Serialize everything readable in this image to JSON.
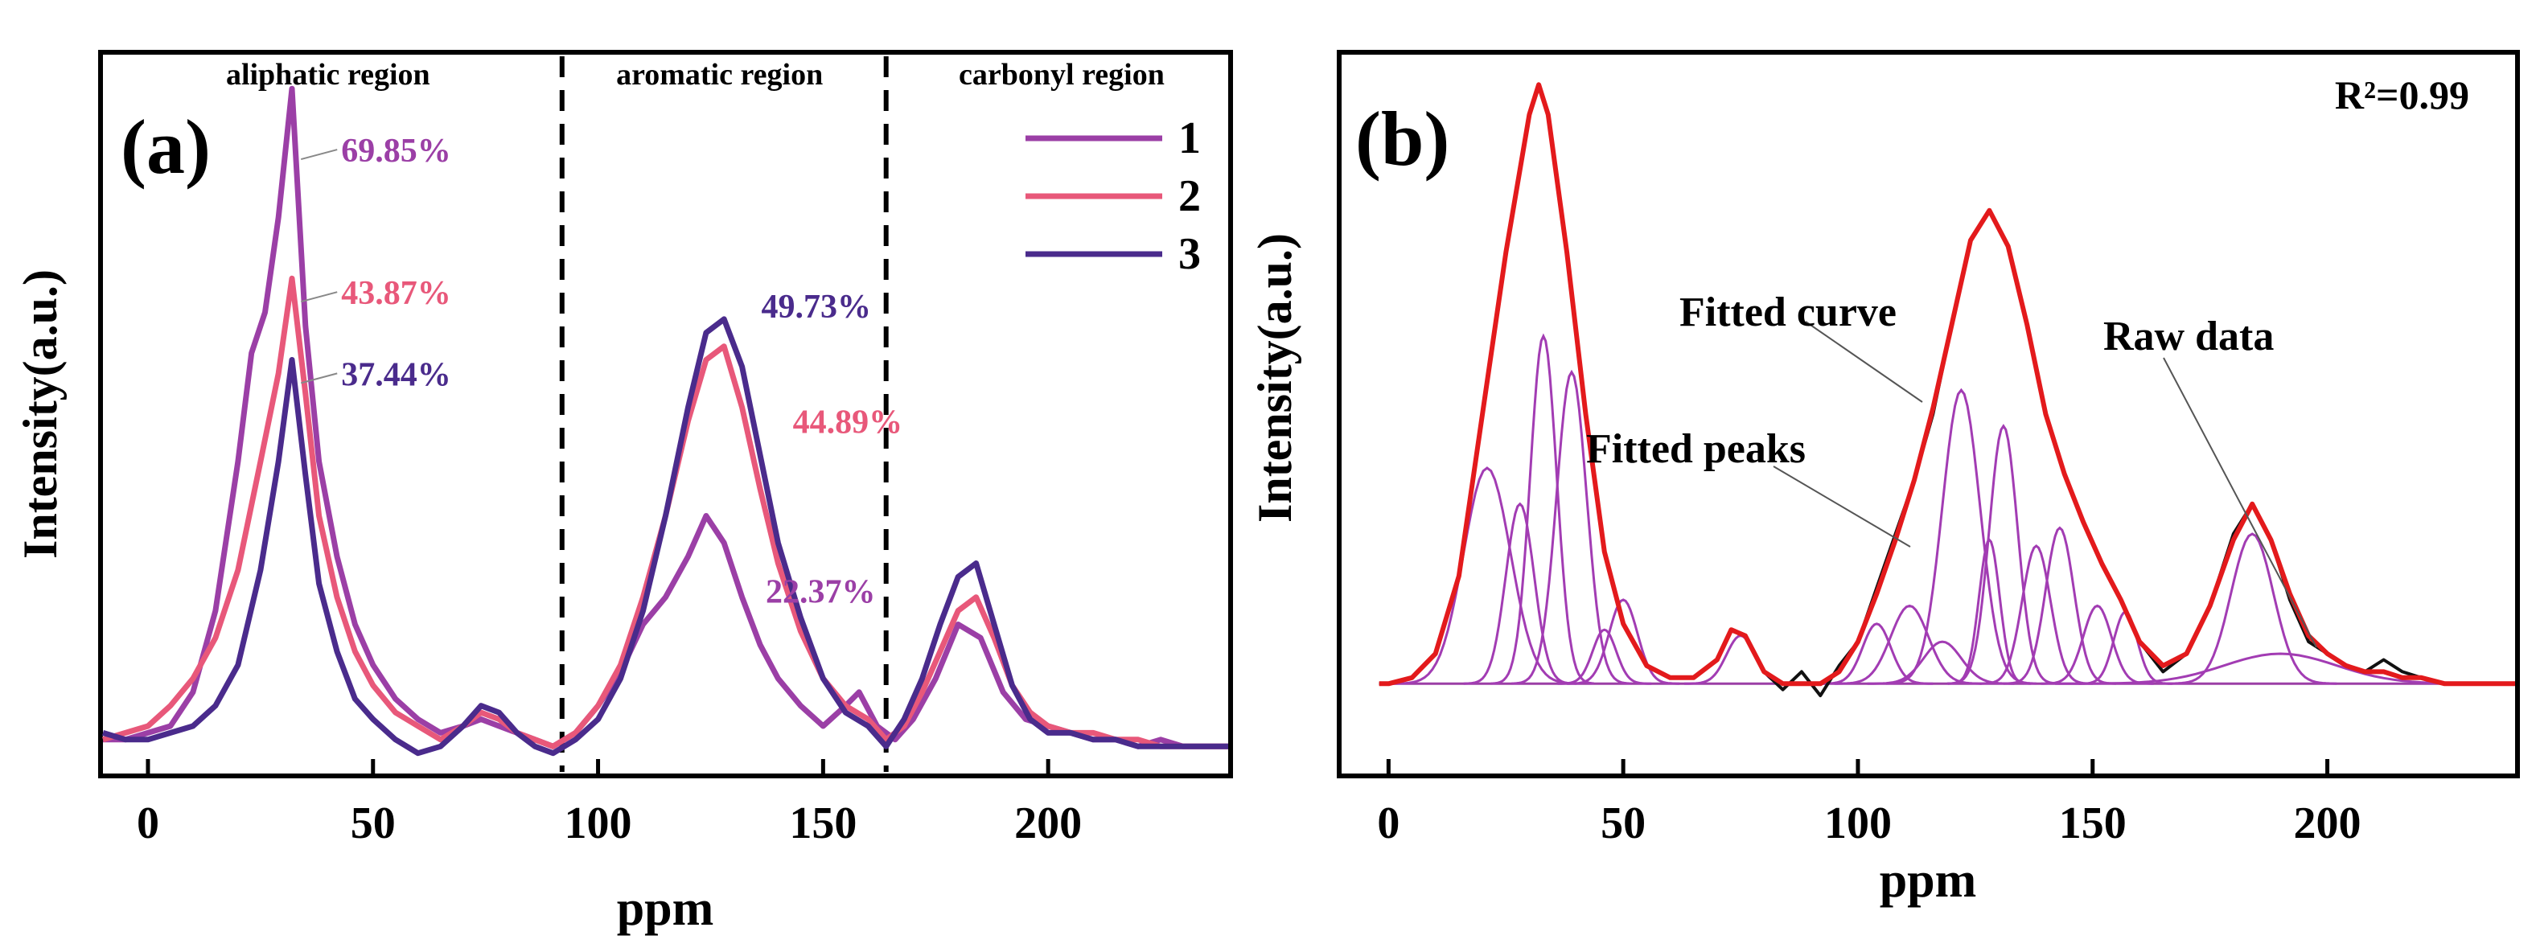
{
  "chart_data": [
    {
      "type": "line",
      "panel_label": "(a)",
      "title": "",
      "xlabel": "ppm",
      "ylabel": "Intensity(a.u.)",
      "xlim": [
        -10,
        240
      ],
      "ylim": [
        -0.04,
        1.02
      ],
      "x_ticks": [
        0,
        50,
        100,
        150,
        200
      ],
      "x_tick_labels": [
        "0",
        "50",
        "100",
        "150",
        "200"
      ],
      "region_dividers": [
        92,
        164
      ],
      "regions": [
        {
          "label": "aliphatic region",
          "center": 40
        },
        {
          "label": "aromatic region",
          "center": 127
        },
        {
          "label": "carbonyl region",
          "center": 203
        }
      ],
      "legend": {
        "position": "top-right",
        "entries": [
          "1",
          "2",
          "3"
        ]
      },
      "series": [
        {
          "name": "1",
          "color": "#9b3fa6",
          "x": [
            -10,
            -5,
            0,
            5,
            10,
            15,
            20,
            23,
            26,
            29,
            32,
            35,
            38,
            42,
            46,
            50,
            55,
            60,
            65,
            70,
            74,
            78,
            82,
            86,
            90,
            95,
            100,
            105,
            110,
            115,
            120,
            124,
            128,
            132,
            136,
            140,
            145,
            150,
            155,
            158,
            162,
            166,
            170,
            175,
            180,
            185,
            190,
            195,
            200,
            205,
            210,
            215,
            220,
            225,
            230,
            235,
            240
          ],
          "y": [
            0.01,
            0.01,
            0.02,
            0.03,
            0.08,
            0.2,
            0.42,
            0.58,
            0.64,
            0.78,
            0.97,
            0.62,
            0.42,
            0.28,
            0.18,
            0.12,
            0.07,
            0.04,
            0.02,
            0.03,
            0.04,
            0.03,
            0.02,
            0.01,
            0.0,
            0.02,
            0.06,
            0.11,
            0.18,
            0.22,
            0.28,
            0.34,
            0.3,
            0.22,
            0.15,
            0.1,
            0.06,
            0.03,
            0.06,
            0.08,
            0.03,
            0.01,
            0.04,
            0.1,
            0.18,
            0.16,
            0.08,
            0.04,
            0.03,
            0.02,
            0.01,
            0.01,
            0.0,
            0.01,
            0.0,
            0.0,
            0.0
          ],
          "annotation": {
            "text": "69.85%",
            "x": 34,
            "y": 0.88
          }
        },
        {
          "name": "2",
          "color": "#e8587a",
          "x": [
            -10,
            -5,
            0,
            5,
            10,
            15,
            20,
            25,
            29,
            32,
            35,
            38,
            42,
            46,
            50,
            55,
            60,
            65,
            70,
            74,
            78,
            82,
            86,
            90,
            95,
            100,
            105,
            110,
            115,
            120,
            124,
            128,
            132,
            136,
            140,
            145,
            150,
            155,
            160,
            164,
            168,
            172,
            176,
            180,
            184,
            188,
            192,
            196,
            200,
            205,
            210,
            215,
            220,
            225,
            230,
            235,
            240
          ],
          "y": [
            0.01,
            0.02,
            0.03,
            0.06,
            0.1,
            0.16,
            0.26,
            0.42,
            0.55,
            0.69,
            0.52,
            0.34,
            0.22,
            0.14,
            0.09,
            0.05,
            0.03,
            0.01,
            0.03,
            0.05,
            0.04,
            0.02,
            0.01,
            0.0,
            0.02,
            0.06,
            0.12,
            0.22,
            0.34,
            0.48,
            0.57,
            0.59,
            0.5,
            0.38,
            0.27,
            0.17,
            0.1,
            0.06,
            0.04,
            0.01,
            0.03,
            0.08,
            0.14,
            0.2,
            0.22,
            0.16,
            0.09,
            0.05,
            0.03,
            0.02,
            0.02,
            0.01,
            0.01,
            0.0,
            0.0,
            0.0,
            0.0
          ],
          "annotation": {
            "text": "43.87%",
            "x": 34,
            "y": 0.67
          }
        },
        {
          "name": "3",
          "color": "#4a2b8c",
          "x": [
            -10,
            -5,
            0,
            5,
            10,
            15,
            20,
            25,
            29,
            32,
            35,
            38,
            42,
            46,
            50,
            55,
            60,
            65,
            70,
            74,
            78,
            82,
            86,
            90,
            95,
            100,
            105,
            110,
            115,
            120,
            124,
            128,
            132,
            136,
            140,
            145,
            150,
            155,
            160,
            164,
            168,
            172,
            176,
            180,
            184,
            188,
            192,
            196,
            200,
            205,
            210,
            215,
            220,
            225,
            230,
            235,
            240
          ],
          "y": [
            0.02,
            0.01,
            0.01,
            0.02,
            0.03,
            0.06,
            0.12,
            0.26,
            0.42,
            0.57,
            0.4,
            0.24,
            0.14,
            0.07,
            0.04,
            0.01,
            -0.01,
            0.0,
            0.03,
            0.06,
            0.05,
            0.02,
            0.0,
            -0.01,
            0.01,
            0.04,
            0.1,
            0.2,
            0.34,
            0.5,
            0.61,
            0.63,
            0.56,
            0.43,
            0.3,
            0.19,
            0.1,
            0.05,
            0.03,
            0.0,
            0.04,
            0.1,
            0.18,
            0.25,
            0.27,
            0.18,
            0.09,
            0.04,
            0.02,
            0.02,
            0.01,
            0.01,
            0.0,
            0.0,
            0.0,
            0.0,
            0.0
          ],
          "annotation": {
            "text": "37.44%",
            "x": 34,
            "y": 0.55
          }
        }
      ],
      "extra_annotations": [
        {
          "text": "49.73%",
          "series": "3",
          "x": 130,
          "y": 0.65
        },
        {
          "text": "44.89%",
          "series": "2",
          "x": 137,
          "y": 0.48
        },
        {
          "text": "22.37%",
          "series": "1",
          "x": 131,
          "y": 0.23
        }
      ]
    },
    {
      "type": "line",
      "panel_label": "(b)",
      "title": "",
      "xlabel": "ppm",
      "ylabel": "Intensity(a.u.)",
      "xlim": [
        -10,
        240
      ],
      "ylim": [
        -0.15,
        1.05
      ],
      "x_ticks": [
        0,
        50,
        100,
        150,
        200
      ],
      "x_tick_labels": [
        "0",
        "50",
        "100",
        "150",
        "200"
      ],
      "stat_label": "R²=0.99",
      "series": [
        {
          "name": "Raw data",
          "color": "#111111",
          "x": [
            -2,
            0,
            5,
            10,
            15,
            20,
            25,
            30,
            32,
            34,
            38,
            42,
            46,
            50,
            55,
            60,
            65,
            70,
            73,
            76,
            80,
            84,
            88,
            92,
            96,
            100,
            104,
            108,
            112,
            116,
            120,
            124,
            128,
            132,
            136,
            140,
            144,
            148,
            152,
            156,
            160,
            165,
            170,
            175,
            180,
            184,
            188,
            192,
            196,
            200,
            204,
            208,
            212,
            216,
            220,
            225,
            230,
            235,
            240
          ],
          "y": [
            0.0,
            0.0,
            0.01,
            0.05,
            0.18,
            0.45,
            0.72,
            0.95,
            1.0,
            0.95,
            0.72,
            0.45,
            0.22,
            0.1,
            0.03,
            0.01,
            0.01,
            0.04,
            0.09,
            0.08,
            0.02,
            -0.01,
            0.02,
            -0.02,
            0.03,
            0.07,
            0.16,
            0.25,
            0.34,
            0.45,
            0.6,
            0.74,
            0.79,
            0.73,
            0.6,
            0.45,
            0.35,
            0.27,
            0.2,
            0.14,
            0.07,
            0.02,
            0.05,
            0.13,
            0.25,
            0.3,
            0.24,
            0.14,
            0.07,
            0.05,
            0.03,
            0.02,
            0.04,
            0.02,
            0.01,
            0.0,
            0.0,
            0.0,
            0.0
          ]
        },
        {
          "name": "Fitted curve",
          "color": "#e31a1c",
          "x": [
            -2,
            0,
            5,
            10,
            15,
            20,
            25,
            30,
            32,
            34,
            38,
            42,
            46,
            50,
            55,
            60,
            65,
            70,
            73,
            76,
            80,
            84,
            88,
            92,
            96,
            100,
            104,
            108,
            112,
            116,
            120,
            124,
            128,
            132,
            136,
            140,
            144,
            148,
            152,
            156,
            160,
            165,
            170,
            175,
            180,
            184,
            188,
            192,
            196,
            200,
            204,
            208,
            212,
            216,
            220,
            225,
            230,
            235,
            240
          ],
          "y": [
            0.0,
            0.0,
            0.01,
            0.05,
            0.18,
            0.45,
            0.72,
            0.95,
            1.0,
            0.95,
            0.72,
            0.45,
            0.22,
            0.1,
            0.03,
            0.01,
            0.01,
            0.04,
            0.09,
            0.08,
            0.02,
            0.0,
            0.0,
            0.0,
            0.02,
            0.07,
            0.15,
            0.24,
            0.34,
            0.46,
            0.6,
            0.74,
            0.79,
            0.73,
            0.6,
            0.45,
            0.35,
            0.27,
            0.2,
            0.14,
            0.07,
            0.03,
            0.05,
            0.13,
            0.24,
            0.3,
            0.24,
            0.15,
            0.08,
            0.05,
            0.03,
            0.02,
            0.02,
            0.01,
            0.01,
            0.0,
            0.0,
            0.0,
            0.0
          ]
        }
      ],
      "fitted_peaks": [
        {
          "center": 21,
          "height": 0.36,
          "width": 5
        },
        {
          "center": 28,
          "height": 0.3,
          "width": 3
        },
        {
          "center": 33,
          "height": 0.58,
          "width": 2.8
        },
        {
          "center": 39,
          "height": 0.52,
          "width": 3.2
        },
        {
          "center": 46,
          "height": 0.09,
          "width": 2.5
        },
        {
          "center": 50,
          "height": 0.14,
          "width": 3
        },
        {
          "center": 75,
          "height": 0.08,
          "width": 3
        },
        {
          "center": 104,
          "height": 0.1,
          "width": 3
        },
        {
          "center": 111,
          "height": 0.13,
          "width": 4
        },
        {
          "center": 118,
          "height": 0.07,
          "width": 4
        },
        {
          "center": 122,
          "height": 0.49,
          "width": 4
        },
        {
          "center": 128,
          "height": 0.24,
          "width": 2.2
        },
        {
          "center": 131,
          "height": 0.43,
          "width": 3
        },
        {
          "center": 138,
          "height": 0.23,
          "width": 3
        },
        {
          "center": 143,
          "height": 0.26,
          "width": 3
        },
        {
          "center": 151,
          "height": 0.13,
          "width": 3
        },
        {
          "center": 157,
          "height": 0.12,
          "width": 2.5
        },
        {
          "center": 184,
          "height": 0.25,
          "width": 4.5
        },
        {
          "center": 190,
          "height": 0.05,
          "width": 12
        }
      ],
      "annotations": [
        {
          "text": "Fitted curve",
          "x": 120,
          "y": 0.62
        },
        {
          "text": "Fitted peaks",
          "x": 102,
          "y": 0.43
        },
        {
          "text": "Raw data",
          "x": 189,
          "y": 0.57
        }
      ]
    }
  ]
}
